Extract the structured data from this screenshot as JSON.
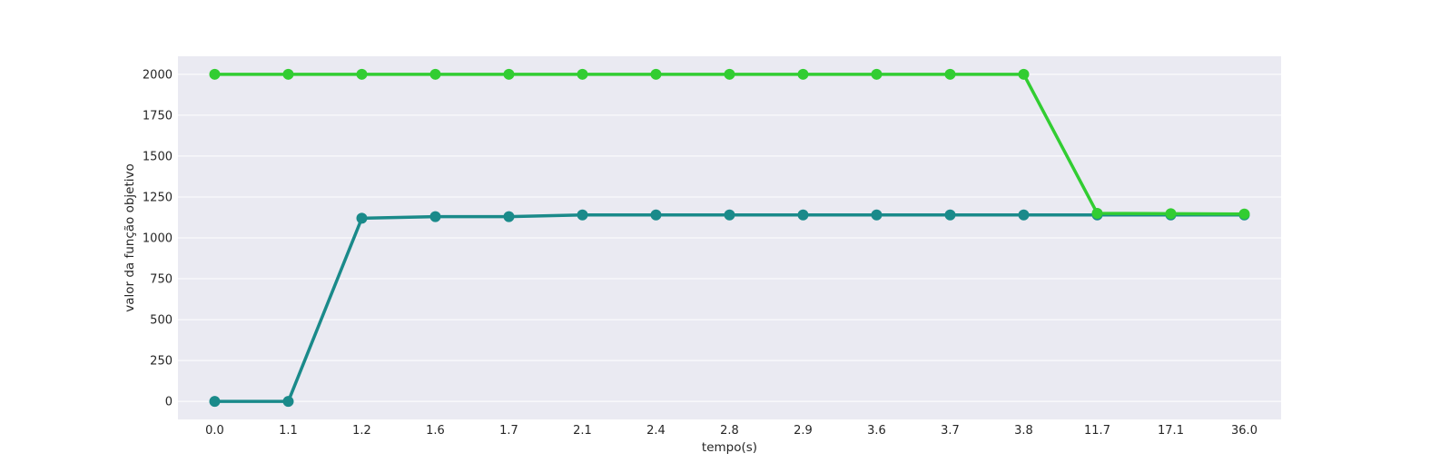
{
  "chart_data": {
    "type": "line",
    "categories": [
      "0.0",
      "1.1",
      "1.2",
      "1.6",
      "1.7",
      "2.1",
      "2.4",
      "2.8",
      "2.9",
      "3.6",
      "3.7",
      "3.8",
      "11.7",
      "17.1",
      "36.0"
    ],
    "xlabel": "tempo(s)",
    "ylabel": "valor da função objetivo",
    "ylim": [
      -110,
      2110
    ],
    "yticks": [
      0,
      250,
      500,
      750,
      1000,
      1250,
      1500,
      1750,
      2000
    ],
    "grid": true,
    "background_color": "#eaeaf2",
    "series": [
      {
        "color": "#1a8a8a",
        "values": [
          0,
          0,
          1120,
          1130,
          1130,
          1140,
          1140,
          1140,
          1140,
          1140,
          1140,
          1140,
          1140,
          1140,
          1140
        ]
      },
      {
        "color": "#32cd32",
        "values": [
          2000,
          2000,
          2000,
          2000,
          2000,
          2000,
          2000,
          2000,
          2000,
          2000,
          2000,
          2000,
          1150,
          1148,
          1146
        ]
      }
    ]
  }
}
